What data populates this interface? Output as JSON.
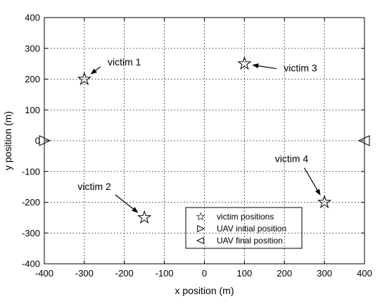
{
  "chart_data": {
    "type": "scatter",
    "xlabel": "x position (m)",
    "ylabel": "y position (m)",
    "xlim": [
      -400,
      400
    ],
    "ylim": [
      -400,
      400
    ],
    "xticks": [
      -400,
      -300,
      -200,
      -100,
      0,
      100,
      200,
      300,
      400
    ],
    "yticks": [
      -400,
      -300,
      -200,
      -100,
      0,
      100,
      200,
      300,
      400
    ],
    "grid": true,
    "legend_position": "bottom-right",
    "legend": [
      {
        "marker": "star",
        "label": "victim positions"
      },
      {
        "marker": "triangle-right",
        "label": "UAV initial position"
      },
      {
        "marker": "triangle-left",
        "label": "UAV final position"
      }
    ],
    "series": [
      {
        "name": "victim positions",
        "marker": "star",
        "points": [
          [
            -300,
            200
          ],
          [
            -150,
            -250
          ],
          [
            100,
            250
          ],
          [
            300,
            -200
          ]
        ]
      },
      {
        "name": "UAV initial position",
        "marker": "triangle-right",
        "points": [
          [
            -400,
            0
          ]
        ]
      },
      {
        "name": "UAV final position",
        "marker": "triangle-left",
        "points": [
          [
            400,
            0
          ]
        ]
      }
    ],
    "annotations": [
      {
        "text": "victim 1",
        "target": [
          -300,
          200
        ],
        "label_at": [
          -200,
          245
        ]
      },
      {
        "text": "victim 2",
        "target": [
          -150,
          -250
        ],
        "label_at": [
          -275,
          -160
        ]
      },
      {
        "text": "victim 3",
        "target": [
          100,
          250
        ],
        "label_at": [
          240,
          225
        ]
      },
      {
        "text": "victim 4",
        "target": [
          300,
          -200
        ],
        "label_at": [
          218,
          -70
        ]
      }
    ]
  }
}
